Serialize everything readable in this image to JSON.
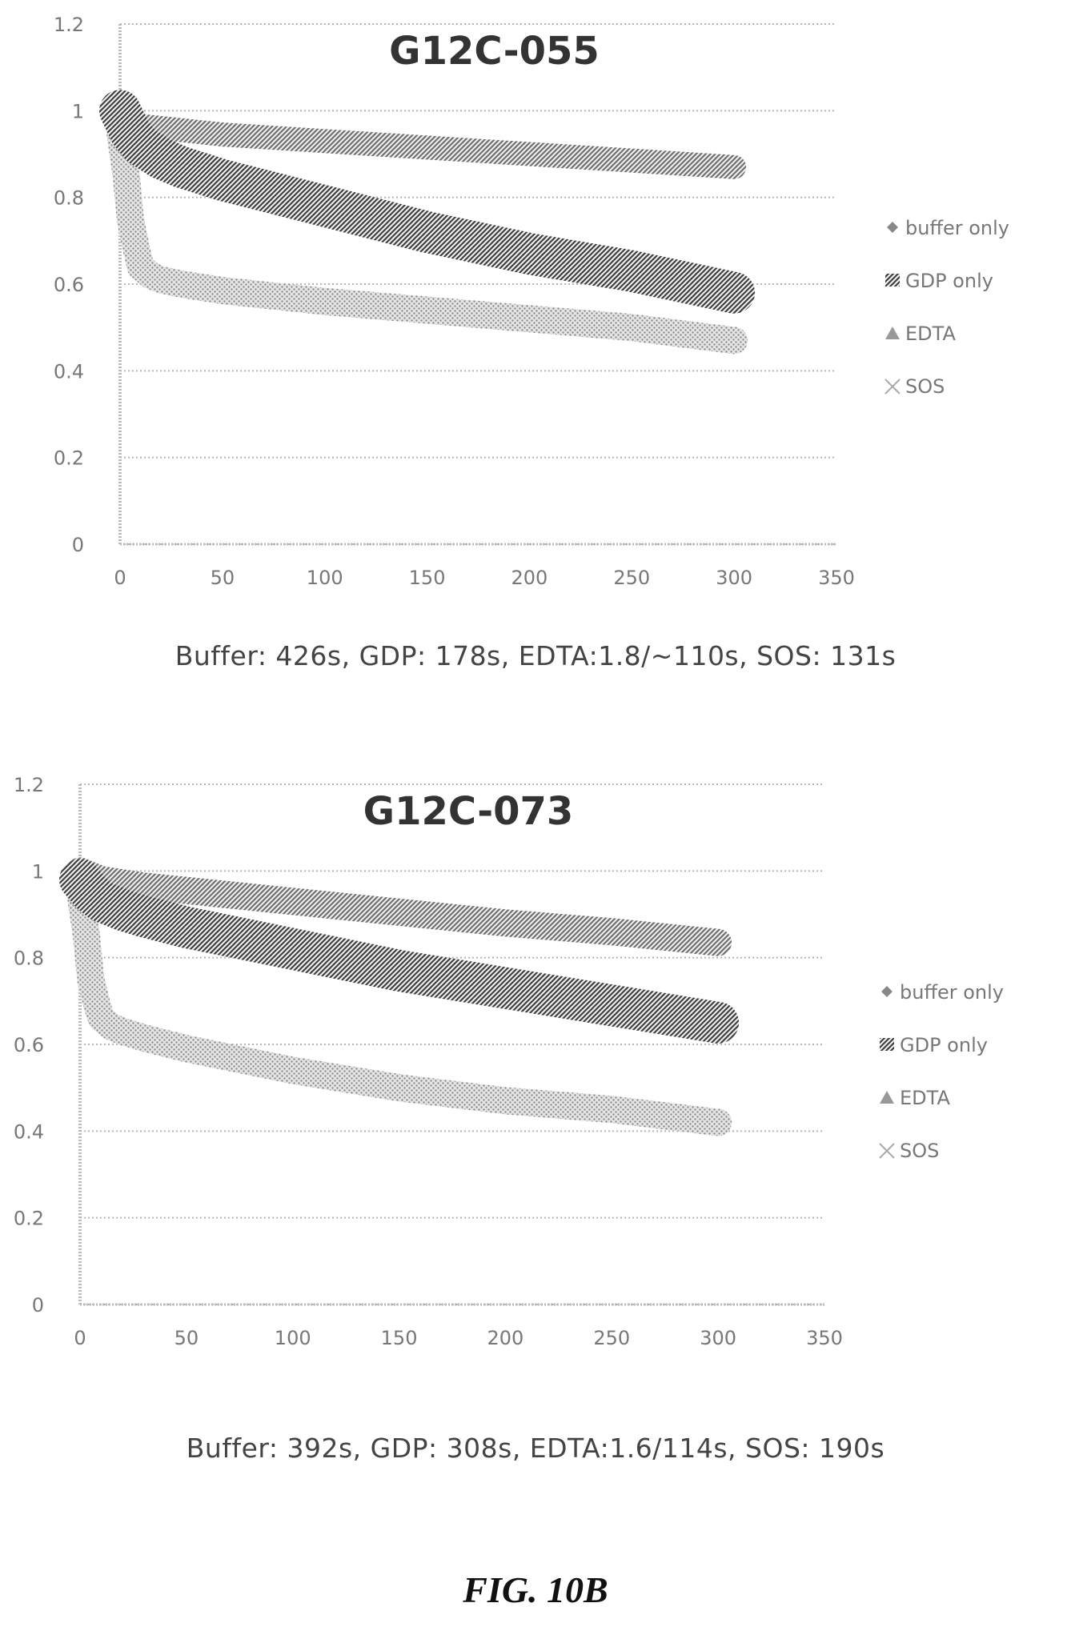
{
  "chart_data": [
    {
      "type": "line",
      "title": "G12C-055",
      "xlabel": "",
      "ylabel": "",
      "xlim": [
        0,
        350
      ],
      "ylim": [
        0,
        1.2
      ],
      "x_ticks": [
        "0",
        "50",
        "100",
        "150",
        "200",
        "250",
        "300",
        "350"
      ],
      "y_ticks": [
        "0",
        "0.2",
        "0.4",
        "0.6",
        "0.8",
        "1",
        "1.2"
      ],
      "grid": "horizontal dotted",
      "legend_position": "right",
      "legend": [
        "buffer only",
        "GDP only",
        "EDTA",
        "SOS"
      ],
      "series": [
        {
          "name": "buffer only",
          "color": "#777777",
          "x": [
            0,
            5,
            10,
            30,
            50,
            100,
            150,
            200,
            250,
            300
          ],
          "y": [
            0.99,
            0.97,
            0.965,
            0.955,
            0.945,
            0.93,
            0.915,
            0.9,
            0.885,
            0.87
          ]
        },
        {
          "name": "GDP only",
          "color": "#555555",
          "x": [
            0,
            5,
            10,
            20,
            30,
            50,
            100,
            150,
            200,
            250,
            300
          ],
          "y": [
            1.0,
            0.95,
            0.92,
            0.89,
            0.87,
            0.84,
            0.78,
            0.72,
            0.67,
            0.63,
            0.58
          ]
        },
        {
          "name": "EDTA",
          "color": "#aaaaaa",
          "x": [
            0,
            3,
            5,
            8,
            10,
            15,
            20,
            30,
            50,
            100,
            150,
            200,
            250,
            300
          ],
          "y": [
            0.95,
            0.85,
            0.75,
            0.68,
            0.64,
            0.62,
            0.61,
            0.6,
            0.585,
            0.56,
            0.54,
            0.52,
            0.5,
            0.47
          ]
        },
        {
          "name": "SOS",
          "color": "#bbbbbb",
          "x": [],
          "y": []
        }
      ],
      "caption": "Buffer: 426s, GDP: 178s, EDTA:1.8/~110s, SOS: 131s"
    },
    {
      "type": "line",
      "title": "G12C-073",
      "xlabel": "",
      "ylabel": "",
      "xlim": [
        0,
        350
      ],
      "ylim": [
        0,
        1.2
      ],
      "x_ticks": [
        "0",
        "50",
        "100",
        "150",
        "200",
        "250",
        "300",
        "350"
      ],
      "y_ticks": [
        "0",
        "0.2",
        "0.4",
        "0.6",
        "0.8",
        "1",
        "1.2"
      ],
      "grid": "horizontal dotted",
      "legend_position": "right",
      "legend": [
        "buffer only",
        "GDP only",
        "EDTA",
        "SOS"
      ],
      "series": [
        {
          "name": "buffer only",
          "color": "#777777",
          "x": [
            0,
            5,
            10,
            30,
            50,
            100,
            150,
            200,
            250,
            300
          ],
          "y": [
            1.0,
            0.99,
            0.98,
            0.965,
            0.955,
            0.93,
            0.905,
            0.88,
            0.86,
            0.835
          ]
        },
        {
          "name": "GDP only",
          "color": "#555555",
          "x": [
            0,
            5,
            10,
            20,
            30,
            50,
            100,
            150,
            200,
            250,
            300
          ],
          "y": [
            0.98,
            0.95,
            0.93,
            0.91,
            0.895,
            0.87,
            0.82,
            0.77,
            0.73,
            0.69,
            0.65
          ]
        },
        {
          "name": "EDTA",
          "color": "#aaaaaa",
          "x": [
            0,
            3,
            5,
            8,
            10,
            15,
            20,
            30,
            50,
            100,
            150,
            200,
            250,
            300
          ],
          "y": [
            0.95,
            0.85,
            0.75,
            0.69,
            0.66,
            0.64,
            0.63,
            0.615,
            0.59,
            0.54,
            0.5,
            0.47,
            0.45,
            0.42
          ]
        },
        {
          "name": "SOS",
          "color": "#bbbbbb",
          "x": [],
          "y": []
        }
      ],
      "caption": "Buffer: 392s, GDP: 308s, EDTA:1.6/114s, SOS: 190s"
    }
  ],
  "figure_label": "FIG. 10B"
}
